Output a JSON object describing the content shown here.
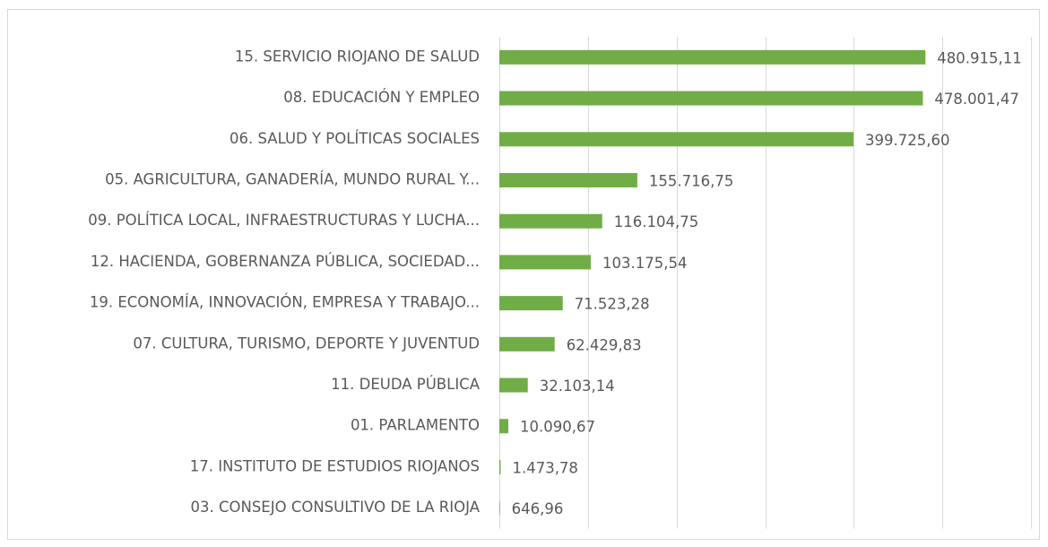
{
  "chart_data": {
    "type": "bar",
    "orientation": "horizontal",
    "categories": [
      "15. SERVICIO RIOJANO DE SALUD",
      "08. EDUCACIÓN Y EMPLEO",
      "06. SALUD Y POLÍTICAS SOCIALES",
      "05. AGRICULTURA, GANADERÍA, MUNDO RURAL Y...",
      "09. POLÍTICA LOCAL, INFRAESTRUCTURAS Y LUCHA...",
      "12. HACIENDA, GOBERNANZA PÚBLICA, SOCIEDAD...",
      "19. ECONOMÍA, INNOVACIÓN, EMPRESA Y TRABAJO...",
      "07. CULTURA, TURISMO, DEPORTE Y JUVENTUD",
      "11. DEUDA PÚBLICA",
      "01. PARLAMENTO",
      "17. INSTITUTO DE ESTUDIOS RIOJANOS",
      "03. CONSEJO CONSULTIVO DE LA RIOJA"
    ],
    "values": [
      480915.11,
      478001.47,
      399725.6,
      155716.75,
      116104.75,
      103175.54,
      71523.28,
      62429.83,
      32103.14,
      10090.67,
      1473.78,
      646.96
    ],
    "value_labels": [
      "480.915,11",
      "478.001,47",
      "399.725,60",
      "155.716,75",
      "116.104,75",
      "103.175,54",
      "71.523,28",
      "62.429,83",
      "32.103,14",
      "10.090,67",
      "1.473,78",
      "646,96"
    ],
    "color": "#70ad47",
    "xlim": [
      0,
      600000
    ],
    "xticks": [
      0,
      100000,
      200000,
      300000,
      400000,
      500000,
      600000
    ],
    "grid": true
  }
}
